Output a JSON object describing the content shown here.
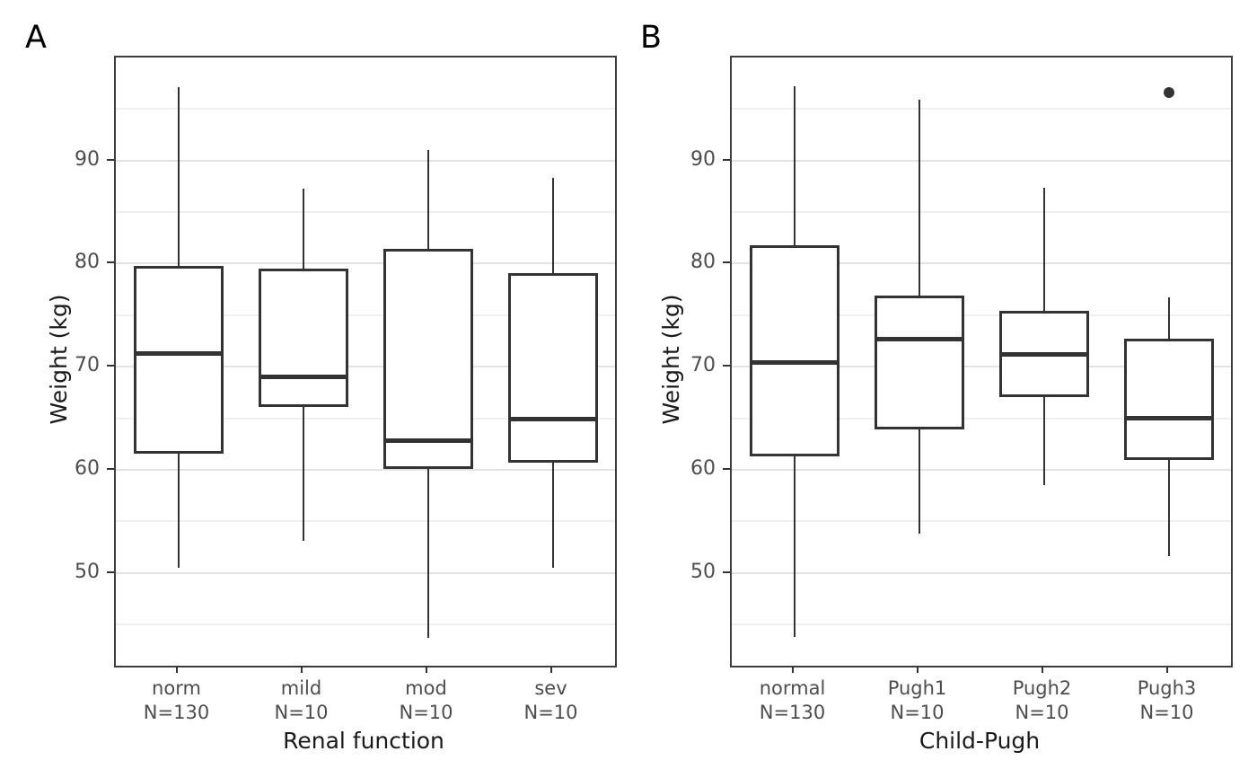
{
  "figure": {
    "background": "#ffffff",
    "panel_tags": [
      "A",
      "B"
    ]
  },
  "colors": {
    "box_stroke": "#333333",
    "median": "#333333",
    "outlier": "#333333",
    "panel_border": "#3d3d3d",
    "grid_major": "#e3e3e3",
    "grid_minor": "#f0f0f0",
    "tick_label": "#4d4d4d",
    "axis_title": "#1a1a1a",
    "panel_tag": "#000000",
    "background": "#ffffff"
  },
  "chart_data": [
    {
      "type": "boxplot",
      "panel_tag": "A",
      "title": "",
      "xlabel": "Renal function",
      "ylabel": "Weight (kg)",
      "ylim": [
        41,
        100
      ],
      "yticks": [
        50,
        60,
        70,
        80,
        90
      ],
      "yticks_minor": [
        45,
        55,
        65,
        75,
        85,
        95
      ],
      "grid": true,
      "legend": false,
      "categories": [
        "norm",
        "mild",
        "mod",
        "sev"
      ],
      "n_labels": [
        "N=130",
        "N=10",
        "N=10",
        "N=10"
      ],
      "boxes": [
        {
          "whisker_low": 50.5,
          "q1": 61.6,
          "median": 71.3,
          "q3": 79.8,
          "whisker_high": 97.1,
          "outliers": []
        },
        {
          "whisker_low": 53.1,
          "q1": 66.1,
          "median": 69.0,
          "q3": 79.5,
          "whisker_high": 87.3,
          "outliers": []
        },
        {
          "whisker_low": 43.7,
          "q1": 60.1,
          "median": 62.8,
          "q3": 81.4,
          "whisker_high": 91.0,
          "outliers": []
        },
        {
          "whisker_low": 50.5,
          "q1": 60.7,
          "median": 64.9,
          "q3": 79.1,
          "whisker_high": 88.3,
          "outliers": []
        }
      ]
    },
    {
      "type": "boxplot",
      "panel_tag": "B",
      "title": "",
      "xlabel": "Child-Pugh",
      "ylabel": "Weight (kg)",
      "ylim": [
        41,
        100
      ],
      "yticks": [
        50,
        60,
        70,
        80,
        90
      ],
      "yticks_minor": [
        45,
        55,
        65,
        75,
        85,
        95
      ],
      "grid": true,
      "legend": false,
      "categories": [
        "normal",
        "Pugh1",
        "Pugh2",
        "Pugh3"
      ],
      "n_labels": [
        "N=130",
        "N=10",
        "N=10",
        "N=10"
      ],
      "boxes": [
        {
          "whisker_low": 43.8,
          "q1": 61.3,
          "median": 70.4,
          "q3": 81.8,
          "whisker_high": 97.2,
          "outliers": []
        },
        {
          "whisker_low": 53.8,
          "q1": 63.9,
          "median": 72.7,
          "q3": 76.9,
          "whisker_high": 95.9,
          "outliers": []
        },
        {
          "whisker_low": 58.5,
          "q1": 67.1,
          "median": 71.2,
          "q3": 75.4,
          "whisker_high": 87.4,
          "outliers": []
        },
        {
          "whisker_low": 51.6,
          "q1": 61.0,
          "median": 65.0,
          "q3": 72.7,
          "whisker_high": 76.7,
          "outliers": [
            96.6
          ]
        }
      ]
    }
  ]
}
